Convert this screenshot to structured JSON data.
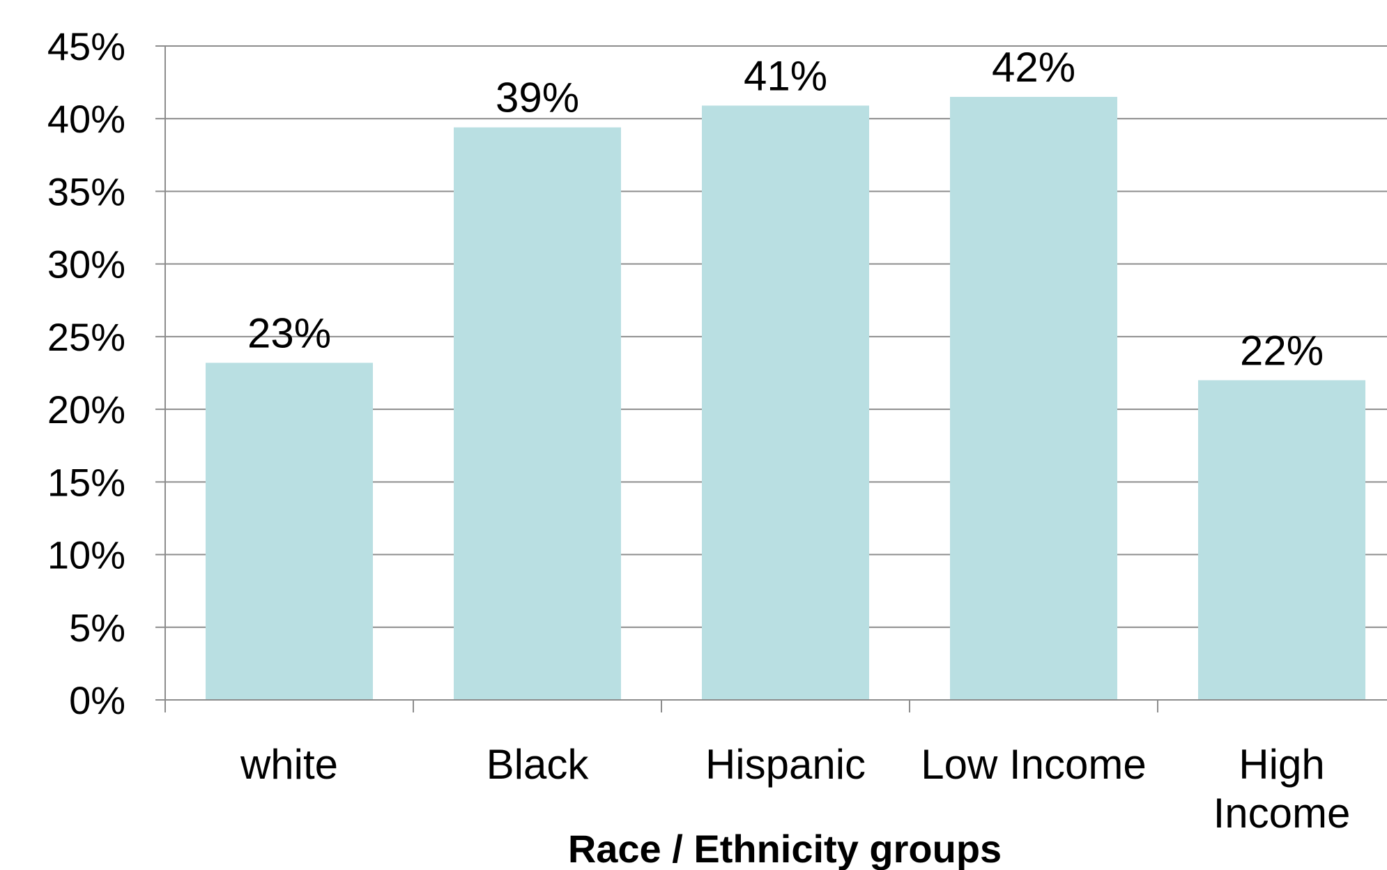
{
  "chart_data": {
    "type": "bar",
    "title": "",
    "xlabel": "Race / Ethnicity groups",
    "ylabel": "",
    "categories": [
      "white",
      "Black",
      "Hispanic",
      "Low Income",
      "High Income"
    ],
    "category_lines": [
      [
        "white"
      ],
      [
        "Black"
      ],
      [
        "Hispanic"
      ],
      [
        "Low Income"
      ],
      [
        "High",
        "Income"
      ]
    ],
    "values": [
      23.2,
      39.4,
      40.9,
      41.5,
      22.0
    ],
    "data_labels": [
      "23%",
      "39%",
      "41%",
      "42%",
      "22%"
    ],
    "ylim": [
      0,
      45
    ],
    "yticks": [
      0,
      5,
      10,
      15,
      20,
      25,
      30,
      35,
      40,
      45
    ],
    "ytick_labels": [
      "0%",
      "5%",
      "10%",
      "15%",
      "20%",
      "25%",
      "30%",
      "35%",
      "40%",
      "45%"
    ],
    "grid": true,
    "legend": "none",
    "bar_color": "#b9dfe2",
    "grid_color": "#8c8c8c"
  }
}
